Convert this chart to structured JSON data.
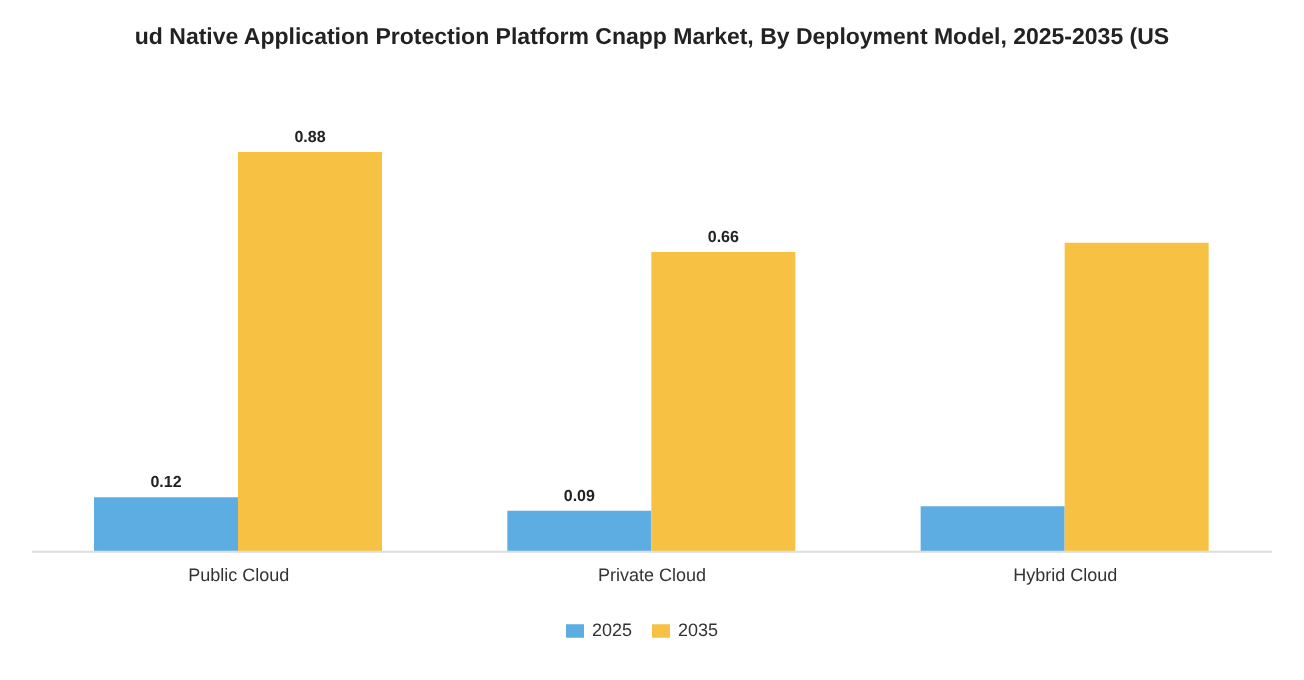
{
  "chart_data": {
    "type": "bar",
    "title": "ud Native Application Protection Platform Cnapp Market, By Deployment Model, 2025-2035 (US",
    "categories": [
      "Public Cloud",
      "Private Cloud",
      "Hybrid Cloud"
    ],
    "series": [
      {
        "name": "2025",
        "color": "#5dade2",
        "values": [
          0.12,
          0.09,
          0.1
        ],
        "value_labels": [
          "0.12",
          "0.09",
          null
        ]
      },
      {
        "name": "2035",
        "color": "#f7c244",
        "values": [
          0.88,
          0.66,
          0.68
        ],
        "value_labels": [
          "0.88",
          "0.66",
          null
        ]
      }
    ],
    "tick_labels": "x",
    "legend": "bottom"
  }
}
